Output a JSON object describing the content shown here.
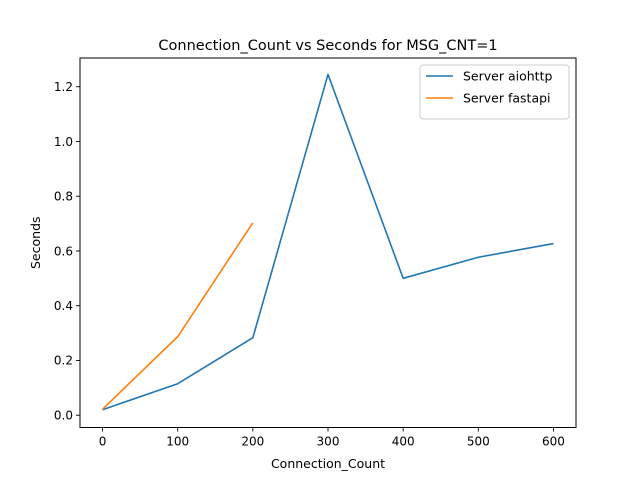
{
  "chart_data": {
    "type": "line",
    "title": "Connection_Count vs Seconds for MSG_CNT=1",
    "xlabel": "Connection_Count",
    "ylabel": "Seconds",
    "xlim": [
      -30,
      630
    ],
    "ylim": [
      -0.045,
      1.305
    ],
    "xticks": [
      0,
      100,
      200,
      300,
      400,
      500,
      600
    ],
    "yticks": [
      0.0,
      0.2,
      0.4,
      0.6,
      0.8,
      1.0,
      1.2
    ],
    "xtick_labels": [
      "0",
      "100",
      "200",
      "300",
      "400",
      "500",
      "600"
    ],
    "ytick_labels": [
      "0.0",
      "0.2",
      "0.4",
      "0.6",
      "0.8",
      "1.0",
      "1.2"
    ],
    "grid": false,
    "legend_position": "top-right",
    "series": [
      {
        "name": "Server aiohttp",
        "color": "#1f77b4",
        "x": [
          0,
          100,
          200,
          300,
          400,
          500,
          600
        ],
        "y": [
          0.02,
          0.115,
          0.283,
          1.245,
          0.5,
          0.577,
          0.627
        ]
      },
      {
        "name": "Server fastapi",
        "color": "#ff7f0e",
        "x": [
          0,
          100,
          200
        ],
        "y": [
          0.022,
          0.287,
          0.703
        ]
      }
    ]
  }
}
